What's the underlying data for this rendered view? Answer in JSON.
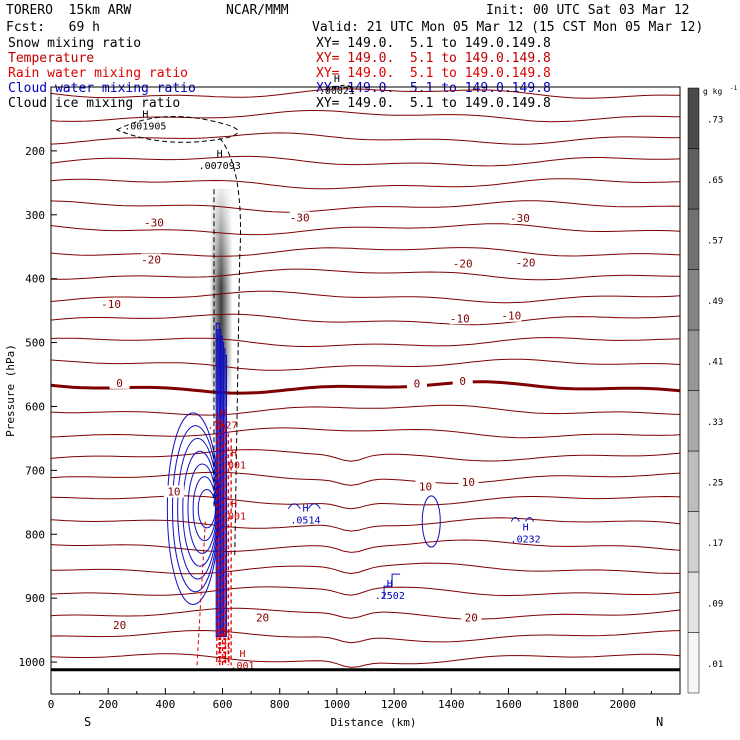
{
  "header": {
    "model": "TORERO  15km ARW",
    "org": "NCAR/MMM",
    "init": "Init: 00 UTC Sat 03 Mar 12",
    "fcst": "Fcst:   69 h",
    "valid": "Valid: 21 UTC Mon 05 Mar 12 (15 CST Mon 05 Mar 12)"
  },
  "fields": [
    {
      "name": "Snow mixing ratio",
      "xy": "XY= 149.0.  5.1 to 149.0.149.8",
      "color": "#000000"
    },
    {
      "name": "Temperature",
      "xy": "XY= 149.0.  5.1 to 149.0.149.8",
      "color": "#c00000"
    },
    {
      "name": "Rain water mixing ratio",
      "xy": "XY= 149.0.  5.1 to 149.0.149.8",
      "color": "#e00000"
    },
    {
      "name": "Cloud water mixing ratio",
      "xy": "XY= 149.0.  5.1 to 149.0.149.8",
      "color": "#0000c0"
    },
    {
      "name": "Cloud ice mixing ratio",
      "xy": "XY= 149.0.  5.1 to 149.0.149.8",
      "color": "#000000"
    }
  ],
  "chart_data": {
    "type": "cross-section",
    "xlabel": "Distance (km)",
    "ylabel": "Pressure (hPa)",
    "x_ticks": [
      0,
      200,
      400,
      600,
      800,
      1000,
      1200,
      1400,
      1600,
      1800,
      2000
    ],
    "xlim": [
      0,
      2200
    ],
    "y_ticks": [
      200,
      300,
      400,
      500,
      600,
      700,
      800,
      900,
      1000
    ],
    "ylim": [
      1050,
      100
    ],
    "ends": {
      "left": "S",
      "right": "N"
    },
    "temperature_labels": [
      {
        "text": "-30",
        "x": 360,
        "p": 312
      },
      {
        "text": "-30",
        "x": 870,
        "p": 304
      },
      {
        "text": "-30",
        "x": 1640,
        "p": 305
      },
      {
        "text": "-20",
        "x": 350,
        "p": 370
      },
      {
        "text": "-20",
        "x": 1440,
        "p": 376
      },
      {
        "text": "-20",
        "x": 1660,
        "p": 375
      },
      {
        "text": "-10",
        "x": 210,
        "p": 440
      },
      {
        "text": "-10",
        "x": 1430,
        "p": 462
      },
      {
        "text": "-10",
        "x": 1610,
        "p": 458
      },
      {
        "text": "0",
        "x": 240,
        "p": 563
      },
      {
        "text": "0",
        "x": 1280,
        "p": 564
      },
      {
        "text": "0",
        "x": 1440,
        "p": 560
      },
      {
        "text": "10",
        "x": 430,
        "p": 733
      },
      {
        "text": "10",
        "x": 1310,
        "p": 725
      },
      {
        "text": "10",
        "x": 1460,
        "p": 718
      },
      {
        "text": "20",
        "x": 240,
        "p": 942
      },
      {
        "text": "20",
        "x": 740,
        "p": 930
      },
      {
        "text": "20",
        "x": 1470,
        "p": 930
      }
    ],
    "maxima_labels": [
      {
        "text": ".001905",
        "x": 330,
        "p": 163,
        "field": "snow"
      },
      {
        "text": ".007093",
        "x": 590,
        "p": 225,
        "field": "snow"
      },
      {
        "text": ".00021",
        "x": 1000,
        "p": 108,
        "field": "ice"
      },
      {
        "text": ".7627",
        "x": 600,
        "p": 631,
        "field": "rain"
      },
      {
        "text": ".001",
        "x": 640,
        "p": 694,
        "field": "rain"
      },
      {
        "text": ".001",
        "x": 640,
        "p": 774,
        "field": "rain"
      },
      {
        "text": ".001",
        "x": 670,
        "p": 1008,
        "field": "rain"
      },
      {
        "text": ".0514",
        "x": 890,
        "p": 780,
        "field": "cloud"
      },
      {
        "text": ".2502",
        "x": 1185,
        "p": 898,
        "field": "cloud"
      },
      {
        "text": ".0232",
        "x": 1660,
        "p": 810,
        "field": "cloud"
      }
    ],
    "colorbar": {
      "unit": "g kg",
      "unit_exp": "-1",
      "labels": [
        ".01",
        ".09",
        ".17",
        ".25",
        ".33",
        ".41",
        ".49",
        ".57",
        ".65",
        ".73"
      ]
    }
  }
}
